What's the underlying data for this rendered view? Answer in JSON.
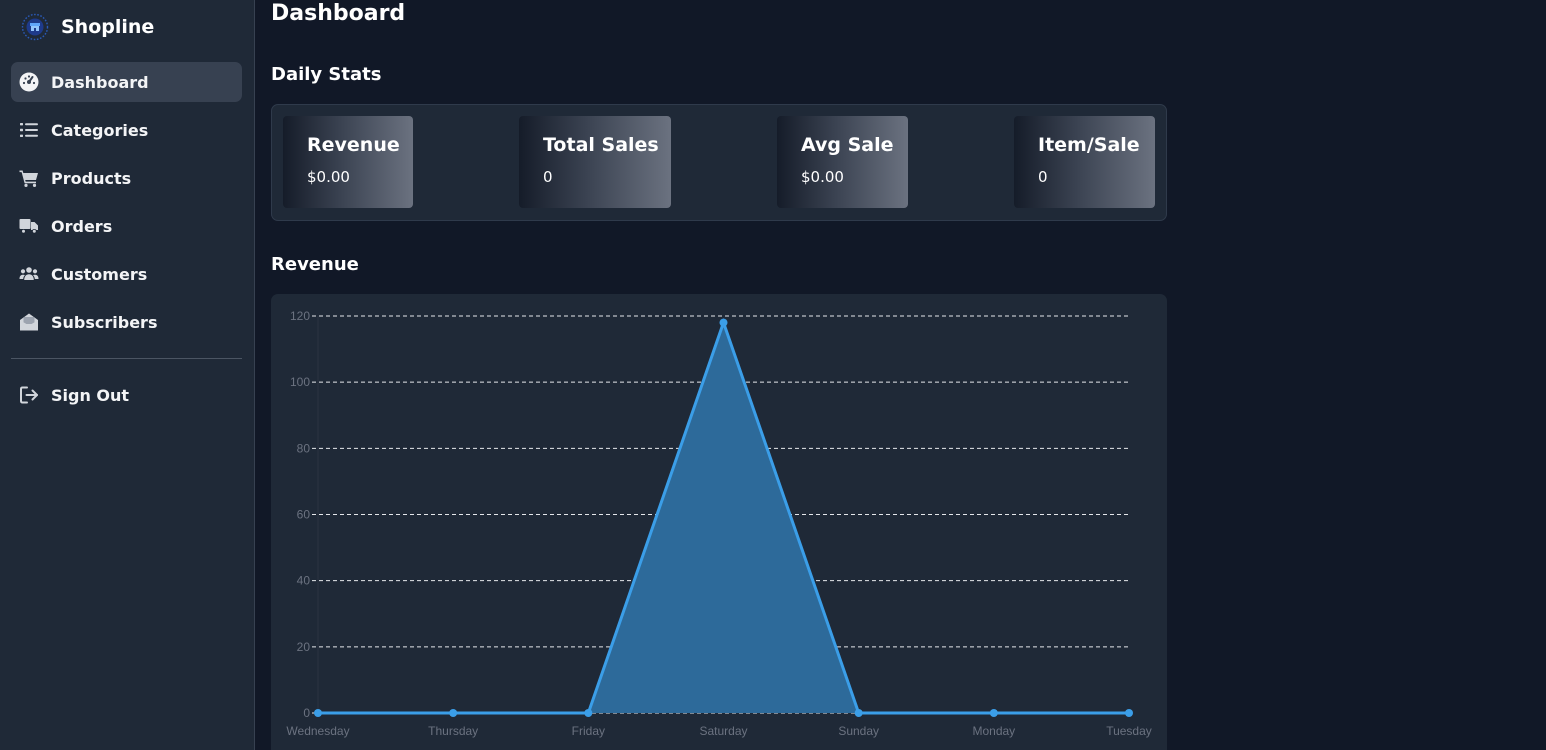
{
  "brand": {
    "name": "Shopline",
    "logo_icon": "store-badge-icon"
  },
  "sidebar": {
    "items": [
      {
        "label": "Dashboard",
        "icon": "gauge-icon",
        "active": true
      },
      {
        "label": "Categories",
        "icon": "list-icon",
        "active": false
      },
      {
        "label": "Products",
        "icon": "cart-icon",
        "active": false
      },
      {
        "label": "Orders",
        "icon": "truck-icon",
        "active": false
      },
      {
        "label": "Customers",
        "icon": "users-icon",
        "active": false
      },
      {
        "label": "Subscribers",
        "icon": "envelope-open-icon",
        "active": false
      }
    ],
    "signout": {
      "label": "Sign Out",
      "icon": "sign-out-icon"
    }
  },
  "page": {
    "title": "Dashboard"
  },
  "stats": {
    "title": "Daily Stats",
    "cards": [
      {
        "label": "Revenue",
        "value": "$0.00"
      },
      {
        "label": "Total Sales",
        "value": "0"
      },
      {
        "label": "Avg Sale",
        "value": "$0.00"
      },
      {
        "label": "Item/Sale",
        "value": "0"
      }
    ]
  },
  "revenue": {
    "title": "Revenue",
    "chart_data": {
      "type": "area",
      "title": "",
      "xlabel": "",
      "ylabel": "",
      "categories": [
        "Wednesday",
        "Thursday",
        "Friday",
        "Saturday",
        "Sunday",
        "Monday",
        "Tuesday"
      ],
      "series": [
        {
          "values": [
            0,
            0,
            0,
            118,
            0,
            0,
            0
          ]
        }
      ],
      "ylim": [
        0,
        120
      ],
      "yticks": [
        0,
        20,
        40,
        60,
        80,
        100,
        120
      ],
      "grid": true,
      "legend": "none",
      "line_color": "#3b9ee8",
      "fill_color": "#2d6a9a"
    }
  },
  "colors": {
    "bg": "#111827",
    "panel": "#1f2937",
    "active": "#374151"
  }
}
